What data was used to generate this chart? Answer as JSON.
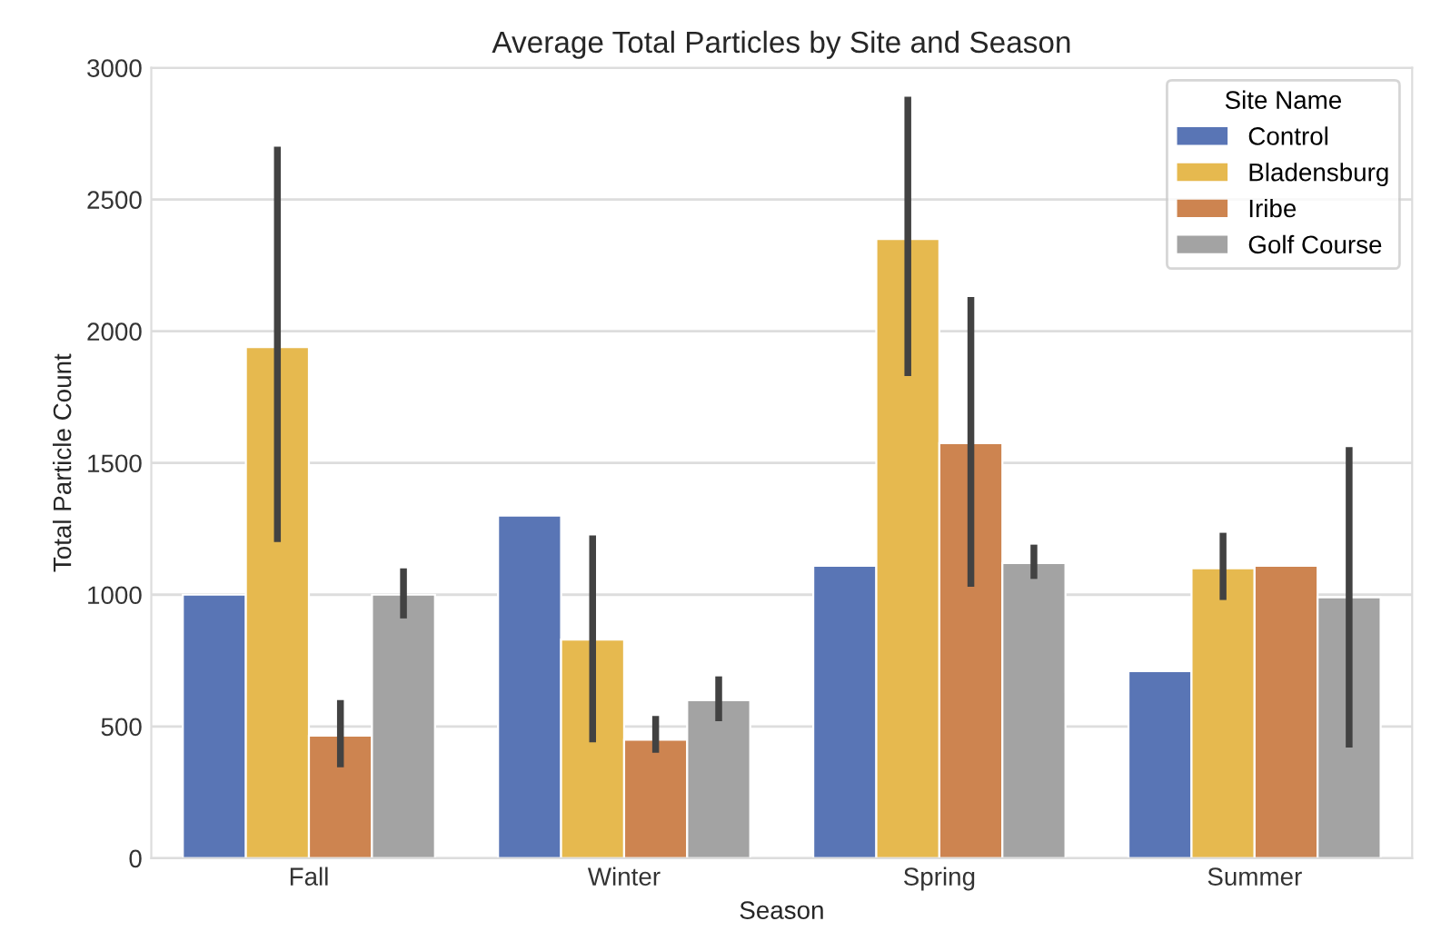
{
  "chart_data": {
    "type": "bar",
    "title": "Average Total Particles by Site and Season",
    "xlabel": "Season",
    "ylabel": "Total Particle Count",
    "legend_title": "Site Name",
    "categories": [
      "Fall",
      "Winter",
      "Spring",
      "Summer"
    ],
    "series": [
      {
        "name": "Control",
        "color": "#5975b5",
        "values": [
          1000,
          1300,
          1110,
          710
        ],
        "errors": [
          null,
          null,
          null,
          null
        ]
      },
      {
        "name": "Bladensburg",
        "color": "#e6b94f",
        "values": [
          1940,
          830,
          2350,
          1100
        ],
        "errors": [
          [
            1200,
            2700
          ],
          [
            440,
            1225
          ],
          [
            1830,
            2890
          ],
          [
            980,
            1235
          ]
        ]
      },
      {
        "name": "Iribe",
        "color": "#cd8450",
        "values": [
          465,
          450,
          1575,
          1110
        ],
        "errors": [
          [
            345,
            600
          ],
          [
            400,
            540
          ],
          [
            1030,
            2130
          ],
          null
        ]
      },
      {
        "name": "Golf Course",
        "color": "#a3a3a3",
        "values": [
          1000,
          600,
          1120,
          990
        ],
        "errors": [
          [
            910,
            1100
          ],
          [
            520,
            690
          ],
          [
            1060,
            1190
          ],
          [
            420,
            1560
          ]
        ]
      }
    ],
    "ylim": [
      0,
      3000
    ],
    "yticks": [
      0,
      500,
      1000,
      1500,
      2000,
      2500,
      3000
    ],
    "grid": "y",
    "legend": "top right"
  }
}
